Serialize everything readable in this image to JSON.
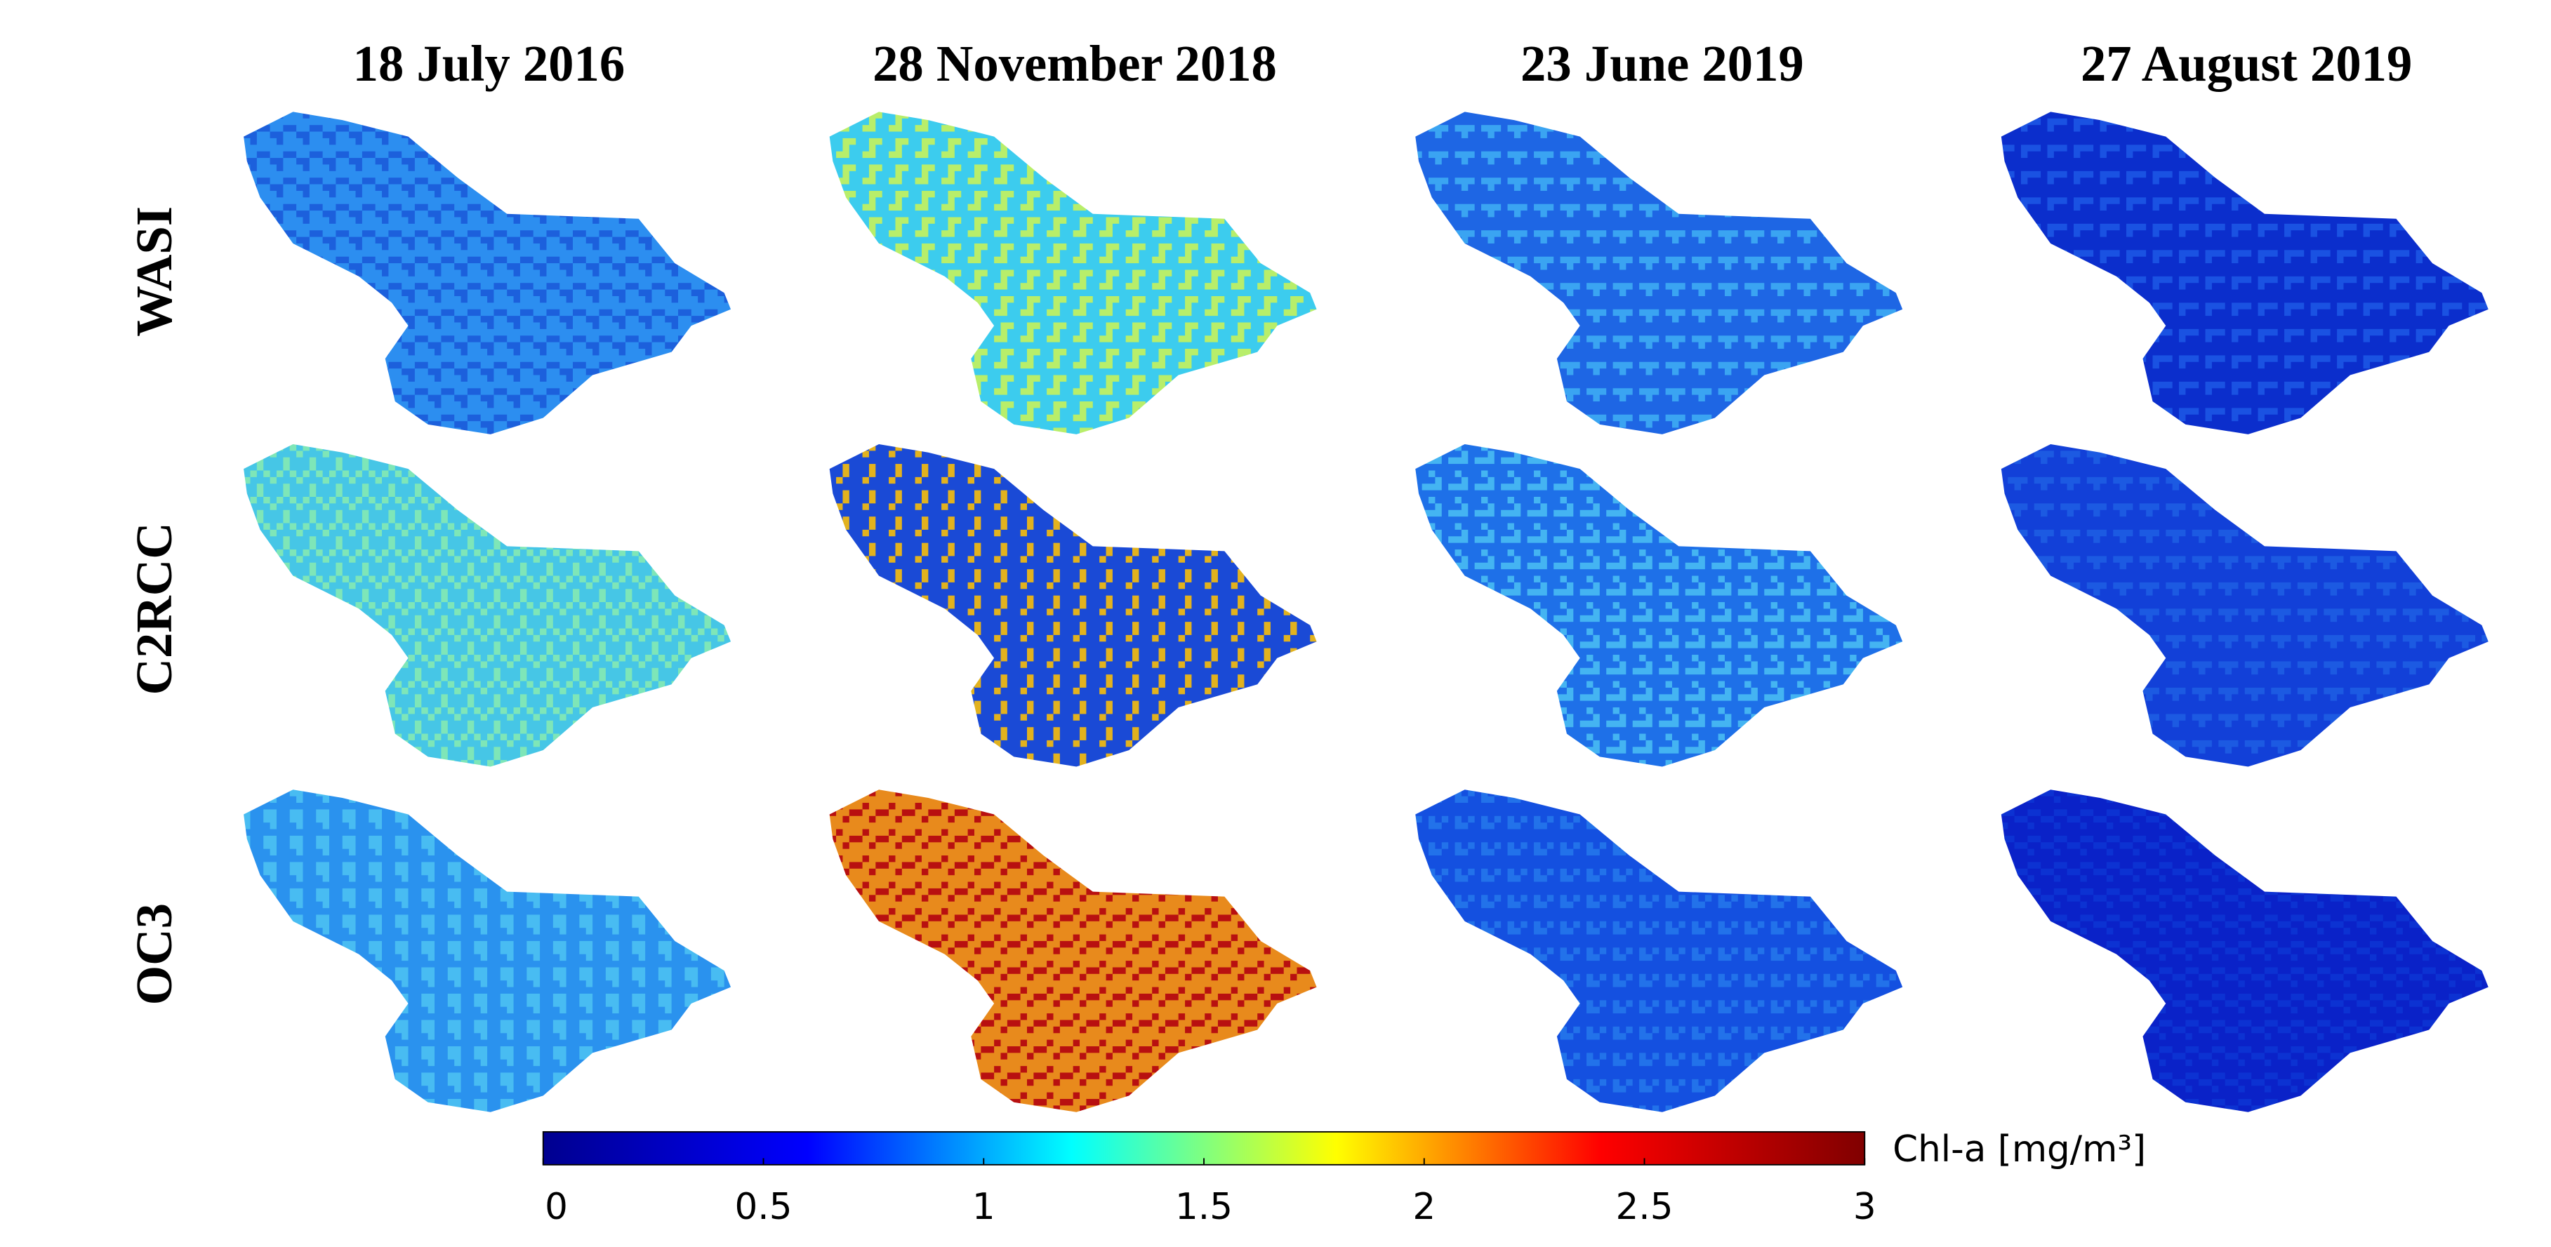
{
  "chart_data": {
    "type": "map-grid",
    "columns": [
      "18 July 2016",
      "28 November 2018",
      "23 June 2019",
      "27 August 2019"
    ],
    "rows": [
      "WASI",
      "C2RCC",
      "OC3"
    ],
    "panel_colors": [
      [
        [
          "#2c8ef0",
          "#1c60dc"
        ],
        [
          "#3cccee",
          "#b8ee6a"
        ],
        [
          "#1e66e4",
          "#3aa4f2"
        ],
        [
          "#0b2ecc",
          "#1a52e2"
        ]
      ],
      [
        [
          "#46c6e6",
          "#7ee6b8"
        ],
        [
          "#1a4ad6",
          "#e2b21e"
        ],
        [
          "#1e70e8",
          "#44b4f2"
        ],
        [
          "#1240d8",
          "#1c5ae2"
        ]
      ],
      [
        [
          "#2a92ee",
          "#48bcf2"
        ],
        [
          "#e88a1c",
          "#b81010"
        ],
        [
          "#1450e0",
          "#2272ea"
        ],
        [
          "#0a22c8",
          "#0c32d2"
        ]
      ]
    ],
    "colorbar": {
      "label": "Chl-a [mg/m³]",
      "xlim": [
        0,
        3
      ],
      "xticks": [
        0,
        0.5,
        1,
        1.5,
        2,
        2.5,
        3
      ],
      "colors": [
        "#00008f",
        "#0000ff",
        "#00ffff",
        "#ffff00",
        "#ff0000",
        "#800000"
      ]
    }
  }
}
